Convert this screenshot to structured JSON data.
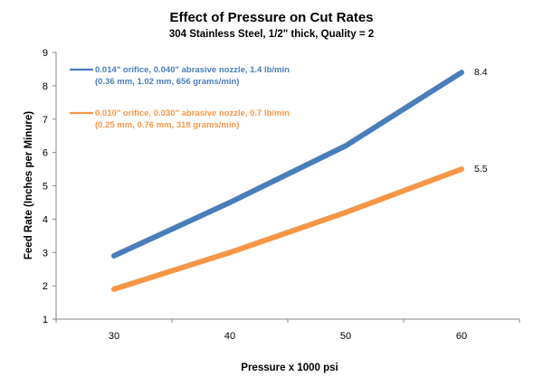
{
  "chart_data": {
    "type": "line",
    "title": "Effect of Pressure on Cut Rates",
    "subtitle": "304 Stainless Steel, 1/2\" thick, Quality = 2",
    "xlabel": "Pressure x 1000 psi",
    "ylabel": "Feed Rate (Inches per Minure)",
    "categories": [
      "30",
      "40",
      "50",
      "60"
    ],
    "ylim": [
      1,
      9
    ],
    "yticks": [
      1,
      2,
      3,
      4,
      5,
      6,
      7,
      8,
      9
    ],
    "grid": false,
    "legend_position": "top-left",
    "series": [
      {
        "name": "0.014\" orifice, 0.040\" abrasive nozzle, 1.4 lb/min",
        "name_line2": "(0.36 mm, 1.02 mm, 656 grams/min)",
        "color": "#4a7ebb",
        "values": [
          2.9,
          4.5,
          6.2,
          8.4
        ],
        "end_label": "8.4"
      },
      {
        "name": "0.010\" orifice, 0.030\" abrasive nozzle, 0.7 lb/min",
        "name_line2": "(0.25 mm, 0.76 mm, 318 grams/min)",
        "color": "#f79646",
        "values": [
          1.9,
          3.0,
          4.2,
          5.5
        ],
        "end_label": "5.5"
      }
    ]
  }
}
